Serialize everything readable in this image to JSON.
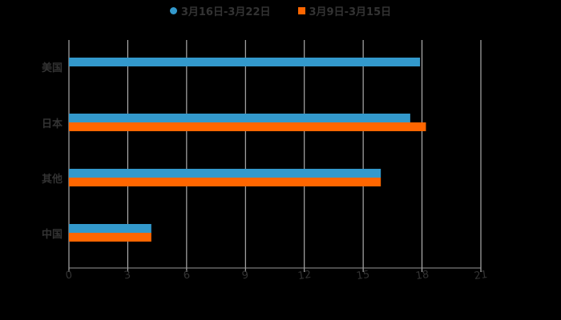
{
  "chart_data": {
    "type": "bar",
    "orientation": "horizontal",
    "categories": [
      "美国",
      "日本",
      "其他",
      "中国"
    ],
    "series": [
      {
        "name": "3月16日-3月22日",
        "color": "#3399cc",
        "marker": "circle",
        "values": [
          17.9,
          17.4,
          15.9,
          4.2
        ]
      },
      {
        "name": "3月9日-3月15日",
        "color": "#ff6600",
        "marker": "square",
        "values": [
          null,
          18.2,
          15.9,
          4.2
        ]
      }
    ],
    "title": "",
    "xlabel": "",
    "ylabel": "",
    "xlim": [
      0,
      21
    ],
    "x_ticks": [
      "0",
      "3",
      "6",
      "9",
      "12",
      "15",
      "18",
      "21"
    ],
    "grid": true,
    "legend_position": "top"
  },
  "legend": {
    "items": [
      {
        "label": "3月16日-3月22日",
        "color": "#3399cc"
      },
      {
        "label": "3月9日-3月15日",
        "color": "#ff6600"
      }
    ]
  },
  "colors": {
    "background": "#000000",
    "grid": "#cccccc",
    "text": "#333333"
  }
}
